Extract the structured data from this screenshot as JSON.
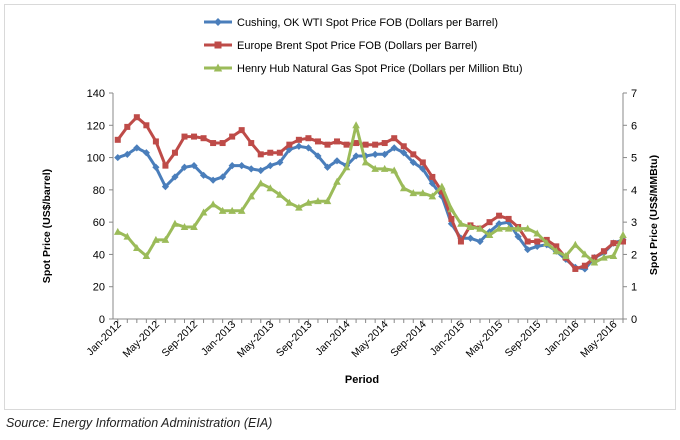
{
  "chart_data": {
    "type": "line",
    "legend_position": "top-center",
    "grid": false,
    "xlabel": "Period",
    "ylabel": "Spot Price  (US$/barrel)",
    "y2label": "Spot Price  (US$/MMBtu)",
    "ylim": [
      0,
      140
    ],
    "y2lim": [
      0,
      7
    ],
    "yticks": [
      "0",
      "20",
      "40",
      "60",
      "80",
      "100",
      "120",
      "140"
    ],
    "y2ticks": [
      "0",
      "1",
      "2",
      "3",
      "4",
      "5",
      "6",
      "7"
    ],
    "xtick_labels": [
      "Jan-2012",
      "May-2012",
      "Sep-2012",
      "Jan-2013",
      "May-2013",
      "Sep-2013",
      "Jan-2014",
      "May-2014",
      "Sep-2014",
      "Jan-2015",
      "May-2015",
      "Sep-2015",
      "Jan-2016",
      "May-2016"
    ],
    "x": [
      "Jan-2012",
      "Feb-2012",
      "Mar-2012",
      "Apr-2012",
      "May-2012",
      "Jun-2012",
      "Jul-2012",
      "Aug-2012",
      "Sep-2012",
      "Oct-2012",
      "Nov-2012",
      "Dec-2012",
      "Jan-2013",
      "Feb-2013",
      "Mar-2013",
      "Apr-2013",
      "May-2013",
      "Jun-2013",
      "Jul-2013",
      "Aug-2013",
      "Sep-2013",
      "Oct-2013",
      "Nov-2013",
      "Dec-2013",
      "Jan-2014",
      "Feb-2014",
      "Mar-2014",
      "Apr-2014",
      "May-2014",
      "Jun-2014",
      "Jul-2014",
      "Aug-2014",
      "Sep-2014",
      "Oct-2014",
      "Nov-2014",
      "Dec-2014",
      "Jan-2015",
      "Feb-2015",
      "Mar-2015",
      "Apr-2015",
      "May-2015",
      "Jun-2015",
      "Jul-2015",
      "Aug-2015",
      "Sep-2015",
      "Oct-2015",
      "Nov-2015",
      "Dec-2015",
      "Jan-2016",
      "Feb-2016",
      "Mar-2016",
      "Apr-2016",
      "May-2016",
      "Jun-2016"
    ],
    "series": [
      {
        "name": "Cushing, OK WTI Spot Price FOB (Dollars per Barrel)",
        "axis": "left",
        "color": "#4a7ebb",
        "marker": "diamond",
        "values": [
          100,
          102,
          106,
          103,
          94,
          82,
          88,
          94,
          95,
          89,
          86,
          88,
          95,
          95,
          93,
          92,
          95,
          97,
          105,
          107,
          106,
          101,
          94,
          98,
          95,
          101,
          101,
          102,
          102,
          106,
          103,
          97,
          93,
          84,
          76,
          59,
          50,
          50,
          48,
          54,
          59,
          60,
          51,
          43,
          45,
          46,
          42,
          37,
          32,
          31,
          38,
          41,
          47,
          49
        ]
      },
      {
        "name": "Europe Brent Spot Price FOB (Dollars per Barrel)",
        "axis": "left",
        "color": "#be4b48",
        "marker": "square",
        "values": [
          111,
          119,
          125,
          120,
          110,
          95,
          103,
          113,
          113,
          112,
          109,
          109,
          113,
          117,
          109,
          102,
          103,
          103,
          108,
          111,
          112,
          110,
          108,
          110,
          108,
          109,
          108,
          108,
          109,
          112,
          107,
          102,
          97,
          88,
          79,
          62,
          48,
          58,
          56,
          60,
          64,
          62,
          57,
          48,
          48,
          49,
          45,
          38,
          31,
          33,
          38,
          42,
          47,
          48
        ]
      },
      {
        "name": "Henry Hub Natural Gas Spot Price (Dollars per Million Btu)",
        "axis": "right",
        "color": "#9bbb59",
        "marker": "triangle",
        "values": [
          2.7,
          2.55,
          2.2,
          1.95,
          2.45,
          2.45,
          2.95,
          2.85,
          2.85,
          3.3,
          3.55,
          3.35,
          3.35,
          3.35,
          3.8,
          4.2,
          4.05,
          3.85,
          3.6,
          3.45,
          3.6,
          3.65,
          3.65,
          4.25,
          4.7,
          6.0,
          4.85,
          4.65,
          4.65,
          4.6,
          4.05,
          3.9,
          3.9,
          3.8,
          4.1,
          3.4,
          2.95,
          2.85,
          2.8,
          2.6,
          2.8,
          2.8,
          2.8,
          2.8,
          2.65,
          2.35,
          2.1,
          1.95,
          2.3,
          2.0,
          1.75,
          1.9,
          1.95,
          2.6
        ]
      }
    ],
    "source": "Source: Energy Information Administration (EIA)"
  }
}
